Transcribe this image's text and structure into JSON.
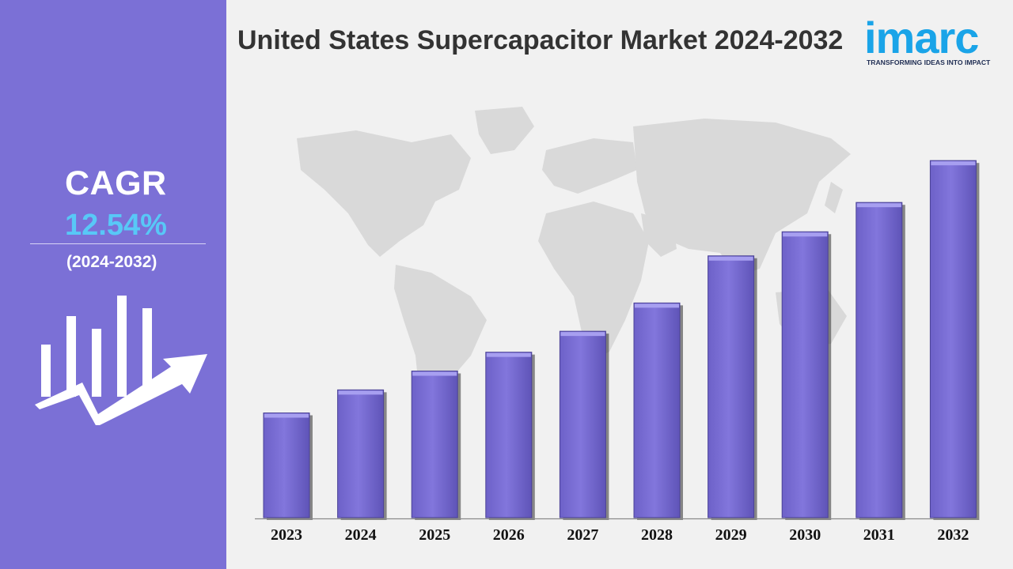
{
  "header": {
    "title": "United States Supercapacitor Market 2024-2032",
    "logo_text": "imarc",
    "logo_tagline": "TRANSFORMING IDEAS INTO IMPACT"
  },
  "sidebar": {
    "cagr_label": "CAGR",
    "cagr_value": "12.54%",
    "cagr_period": "(2024-2032)"
  },
  "colors": {
    "sidebar_bg": "#7b70d6",
    "bar_fill": "#7b70d6",
    "cagr_value": "#58c8f7",
    "logo": "#1aa4e8",
    "background": "#f1f1f1"
  },
  "icons": [
    "growth-chart-icon",
    "world-map"
  ],
  "chart_data": {
    "type": "bar",
    "title": "United States Supercapacitor Market 2024-2032",
    "categories": [
      "2023",
      "2024",
      "2025",
      "2026",
      "2027",
      "2028",
      "2029",
      "2030",
      "2031",
      "2032"
    ],
    "values": [
      100,
      122,
      140,
      158,
      178,
      205,
      250,
      273,
      301,
      341
    ],
    "ylim": [
      0,
      360
    ],
    "xlabel": "",
    "ylabel": "",
    "grid": false,
    "legend": "none"
  }
}
